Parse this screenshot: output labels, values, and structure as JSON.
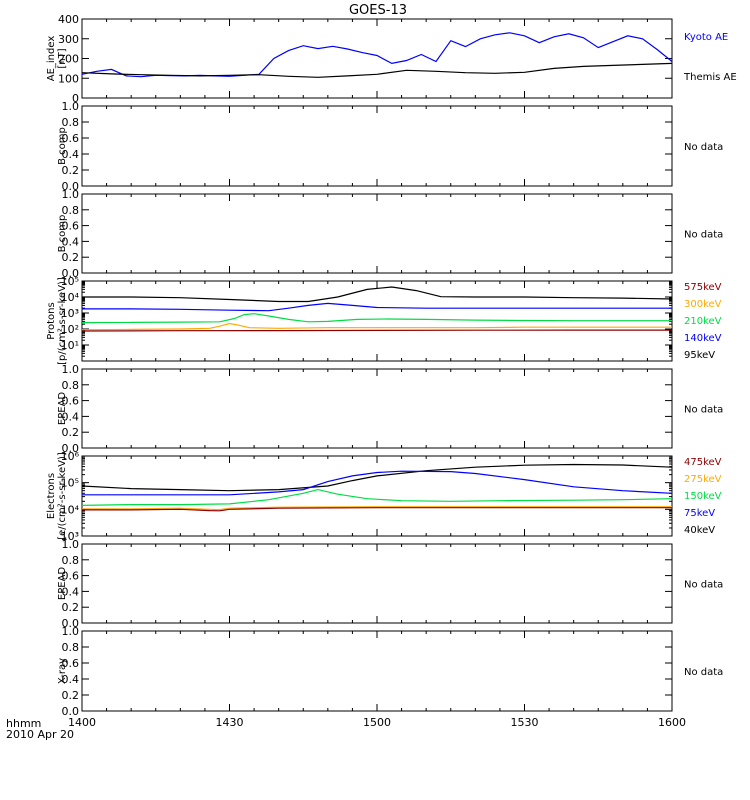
{
  "title": "GOES-13",
  "time_axis": {
    "unit_label": "hhmm",
    "date_label": "2010 Apr 20",
    "ticks": [
      "1400",
      "1430",
      "1500",
      "1530",
      "1600"
    ],
    "tick_minutes": [
      0,
      30,
      60,
      90,
      120
    ],
    "range_minutes": [
      0,
      120
    ]
  },
  "colors": {
    "black": "#000000",
    "blue": "#0000ff",
    "green": "#00dd44",
    "orange": "#ffaa00",
    "red": "#b00000",
    "darkred": "#8b0000"
  },
  "chart_data": [
    {
      "id": "ae",
      "type": "line",
      "ylabel": [
        "AE_index",
        "[nT]"
      ],
      "ylim": [
        0,
        400
      ],
      "yticks": [
        0,
        100,
        200,
        300,
        400
      ],
      "scale": "linear",
      "x_unit": "minutes after 1400 UT",
      "series": [
        {
          "name": "Kyoto AE",
          "color": "#0000ff",
          "x": [
            0,
            3,
            6,
            9,
            12,
            15,
            18,
            21,
            24,
            27,
            30,
            33,
            36,
            39,
            42,
            45,
            48,
            51,
            54,
            57,
            60,
            63,
            66,
            69,
            72,
            75,
            78,
            81,
            84,
            87,
            90,
            93,
            96,
            99,
            102,
            105,
            108,
            111,
            114,
            117,
            120
          ],
          "y": [
            120,
            135,
            145,
            112,
            108,
            115,
            113,
            112,
            115,
            112,
            110,
            115,
            120,
            200,
            240,
            265,
            250,
            262,
            248,
            230,
            215,
            175,
            190,
            220,
            185,
            290,
            260,
            300,
            320,
            330,
            315,
            280,
            310,
            325,
            305,
            255,
            285,
            315,
            300,
            245,
            185
          ]
        },
        {
          "name": "Themis AE",
          "color": "#000000",
          "x": [
            0,
            6,
            12,
            18,
            24,
            30,
            36,
            42,
            48,
            54,
            60,
            66,
            72,
            78,
            84,
            90,
            96,
            102,
            108,
            114,
            120
          ],
          "y": [
            128,
            122,
            118,
            115,
            112,
            115,
            118,
            110,
            105,
            112,
            120,
            140,
            135,
            128,
            125,
            130,
            150,
            160,
            165,
            170,
            175
          ]
        }
      ]
    },
    {
      "id": "b1",
      "type": "line",
      "ylabel": [
        "B comp"
      ],
      "ylim": [
        0,
        1
      ],
      "yticks": [
        0,
        0.2,
        0.4,
        0.6,
        0.8,
        1.0
      ],
      "scale": "linear",
      "note": "No data"
    },
    {
      "id": "b2",
      "type": "line",
      "ylabel": [
        "B comp"
      ],
      "ylim": [
        0,
        1
      ],
      "yticks": [
        0,
        0.2,
        0.4,
        0.6,
        0.8,
        1.0
      ],
      "scale": "linear",
      "note": "No data"
    },
    {
      "id": "protons",
      "type": "line",
      "ylabel": [
        "Protons",
        "[p/(cm²-s-sr-keV)]"
      ],
      "ylim": [
        1,
        100000
      ],
      "yticks": [
        10,
        100,
        1000,
        10000,
        100000
      ],
      "ytick_labels": [
        "10¹",
        "10²",
        "10³",
        "10⁴",
        "10⁵"
      ],
      "scale": "log",
      "series": [
        {
          "name": "95keV",
          "color": "#000000",
          "x": [
            0,
            10,
            20,
            30,
            40,
            46,
            52,
            58,
            63,
            68,
            73,
            80,
            90,
            100,
            110,
            120
          ],
          "y": [
            10000,
            10000,
            9000,
            7000,
            5200,
            5200,
            10000,
            30000,
            42000,
            25000,
            10500,
            10000,
            10000,
            9000,
            8500,
            7500
          ]
        },
        {
          "name": "140keV",
          "color": "#0000ff",
          "x": [
            0,
            10,
            20,
            30,
            38,
            42,
            46,
            50,
            55,
            60,
            70,
            80,
            90,
            100,
            110,
            120
          ],
          "y": [
            1800,
            1800,
            1700,
            1500,
            1400,
            2000,
            3000,
            4000,
            3000,
            2200,
            2000,
            2000,
            2000,
            2000,
            2000,
            2000
          ]
        },
        {
          "name": "210keV",
          "color": "#00dd44",
          "x": [
            0,
            10,
            20,
            28,
            31,
            33,
            35,
            38,
            42,
            46,
            50,
            56,
            62,
            70,
            80,
            90,
            100,
            110,
            120
          ],
          "y": [
            250,
            260,
            270,
            280,
            450,
            800,
            900,
            650,
            400,
            280,
            300,
            400,
            420,
            400,
            360,
            340,
            330,
            330,
            330
          ]
        },
        {
          "name": "300keV",
          "color": "#ffaa00",
          "x": [
            0,
            10,
            20,
            26,
            28,
            30,
            32,
            34,
            40,
            50,
            60,
            70,
            80,
            90,
            100,
            110,
            120
          ],
          "y": [
            90,
            95,
            100,
            110,
            150,
            220,
            170,
            120,
            110,
            120,
            120,
            120,
            120,
            130,
            130,
            130,
            130
          ]
        },
        {
          "name": "575keV",
          "color": "#8b0000",
          "x": [
            0,
            20,
            40,
            60,
            80,
            100,
            120
          ],
          "y": [
            75,
            78,
            80,
            82,
            84,
            85,
            85
          ]
        }
      ]
    },
    {
      "id": "epead1",
      "type": "line",
      "ylabel": [
        "EPEAD"
      ],
      "ylim": [
        0,
        1
      ],
      "yticks": [
        0,
        0.2,
        0.4,
        0.6,
        0.8,
        1.0
      ],
      "scale": "linear",
      "note": "No data"
    },
    {
      "id": "electrons",
      "type": "line",
      "ylabel": [
        "Electrons",
        "[e/(cm²-s-sr-keV)]"
      ],
      "ylim": [
        1000,
        1000000
      ],
      "yticks": [
        1000,
        10000,
        100000,
        1000000
      ],
      "ytick_labels": [
        "10³",
        "10⁴",
        "10⁵",
        "10⁶"
      ],
      "scale": "log",
      "series": [
        {
          "name": "40keV",
          "color": "#000000",
          "x": [
            0,
            10,
            20,
            30,
            40,
            50,
            55,
            60,
            70,
            80,
            90,
            100,
            110,
            120
          ],
          "y": [
            75000,
            60000,
            55000,
            50000,
            55000,
            75000,
            120000,
            180000,
            280000,
            380000,
            450000,
            480000,
            460000,
            380000
          ]
        },
        {
          "name": "75keV",
          "color": "#0000ff",
          "x": [
            0,
            10,
            20,
            30,
            40,
            45,
            50,
            55,
            60,
            65,
            75,
            80,
            90,
            100,
            110,
            120
          ],
          "y": [
            35000,
            35000,
            35000,
            35000,
            45000,
            55000,
            110000,
            180000,
            240000,
            270000,
            260000,
            220000,
            130000,
            70000,
            50000,
            40000
          ]
        },
        {
          "name": "150keV",
          "color": "#00dd44",
          "x": [
            0,
            10,
            20,
            30,
            38,
            45,
            48,
            52,
            58,
            65,
            75,
            85,
            100,
            110,
            120
          ],
          "y": [
            14000,
            15000,
            15000,
            16000,
            23000,
            40000,
            55000,
            37000,
            25000,
            21000,
            20000,
            21000,
            22000,
            23000,
            25000
          ]
        },
        {
          "name": "275keV",
          "color": "#ffaa00",
          "x": [
            0,
            10,
            20,
            26,
            28,
            30,
            40,
            60,
            80,
            100,
            120
          ],
          "y": [
            10500,
            10500,
            11000,
            10000,
            9800,
            11000,
            12000,
            12500,
            12500,
            12500,
            12500
          ]
        },
        {
          "name": "475keV",
          "color": "#8b0000",
          "x": [
            0,
            10,
            20,
            26,
            28,
            30,
            40,
            60,
            80,
            100,
            120
          ],
          "y": [
            9500,
            9500,
            10000,
            9000,
            8800,
            10000,
            11000,
            11500,
            11500,
            11500,
            11500
          ]
        }
      ]
    },
    {
      "id": "epead2",
      "type": "line",
      "ylabel": [
        "EPEAD"
      ],
      "ylim": [
        0,
        1
      ],
      "yticks": [
        0,
        0.2,
        0.4,
        0.6,
        0.8,
        1.0
      ],
      "scale": "linear",
      "note": "No data"
    },
    {
      "id": "xray",
      "type": "line",
      "ylabel": [
        "X-ray"
      ],
      "ylim": [
        0,
        1
      ],
      "yticks": [
        0,
        0.2,
        0.4,
        0.6,
        0.8,
        1.0
      ],
      "scale": "linear",
      "note": "No data"
    }
  ]
}
